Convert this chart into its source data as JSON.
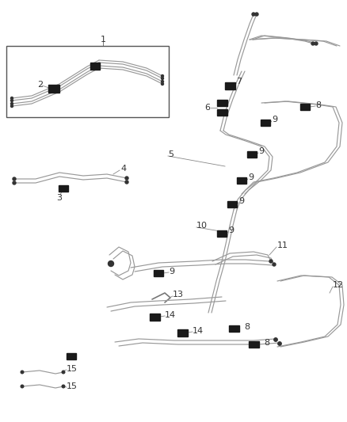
{
  "bg_color": "#ffffff",
  "line_color": "#999999",
  "dark_color": "#1a1a1a",
  "figsize": [
    4.38,
    5.33
  ],
  "dpi": 100,
  "lw": 1.0
}
